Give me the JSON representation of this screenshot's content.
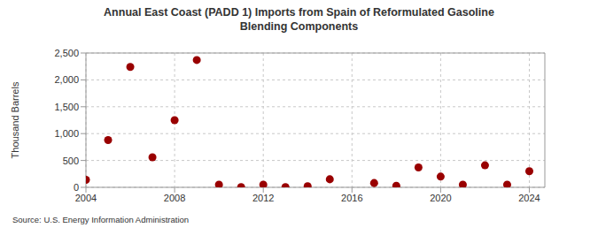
{
  "chart_data": {
    "type": "scatter",
    "title": "Annual East Coast (PADD 1) Imports from Spain of Reformulated Gasoline Blending Components",
    "y_label": "Thousand Barrels",
    "source": "Source: U.S. Energy Information Administration",
    "x": [
      2004,
      2005,
      2006,
      2007,
      2008,
      2009,
      2010,
      2011,
      2012,
      2013,
      2014,
      2015,
      2017,
      2018,
      2019,
      2020,
      2021,
      2022,
      2023,
      2024
    ],
    "values": [
      140,
      880,
      2240,
      560,
      1250,
      2370,
      50,
      5,
      50,
      5,
      20,
      150,
      80,
      30,
      370,
      200,
      50,
      410,
      50,
      300
    ],
    "color": "#990000",
    "marker": "circle",
    "xlim": [
      2004,
      2024.7
    ],
    "xticks": [
      2004,
      2008,
      2012,
      2016,
      2020,
      2024
    ],
    "ylim": [
      0,
      2500
    ],
    "yticks": [
      0,
      500,
      {
        "value": 1000,
        "label": "1,000"
      },
      {
        "value": 1500,
        "label": "1,500"
      },
      {
        "value": 2000,
        "label": "2,000"
      },
      {
        "value": 2500,
        "label": "2,500"
      }
    ],
    "grid": true
  }
}
